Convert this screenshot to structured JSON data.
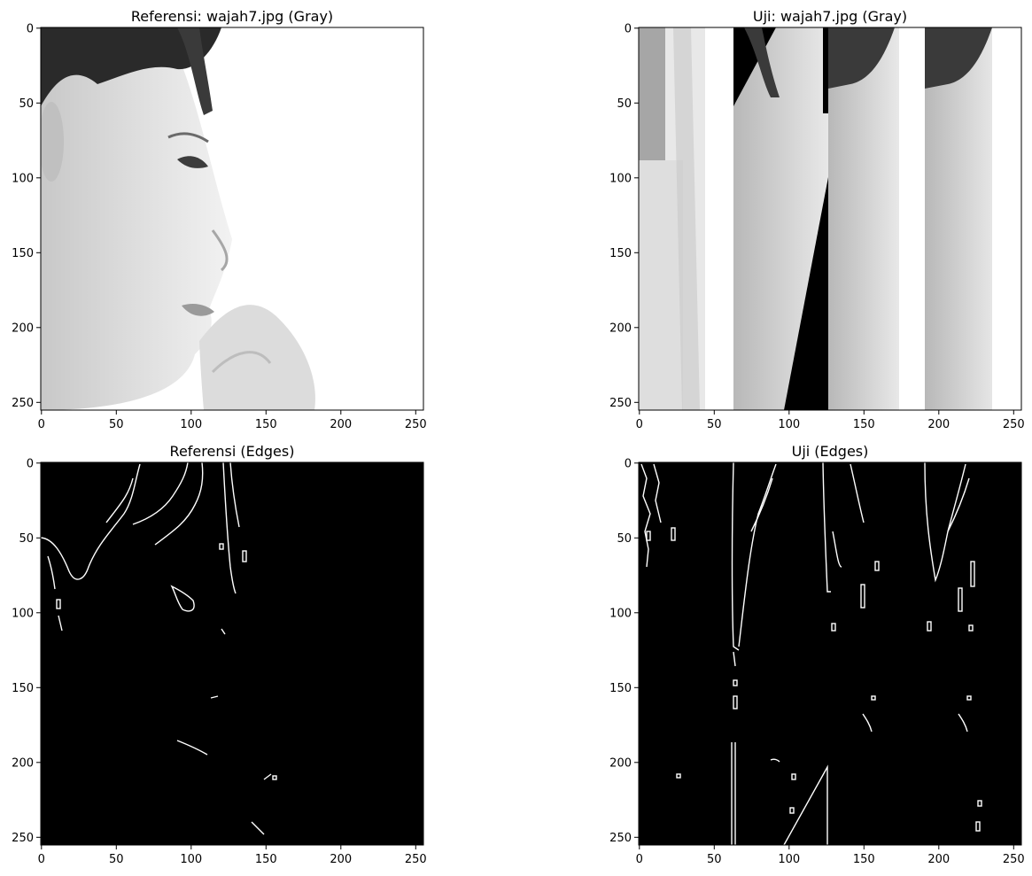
{
  "chart_data": [
    {
      "type": "image",
      "title": "Referensi: wajah7.jpg (Gray)",
      "colormap": "gray",
      "content": "grayscale photo of a face on white background",
      "xlim": [
        0,
        255
      ],
      "ylim": [
        255,
        0
      ],
      "xticks": [
        "0",
        "50",
        "100",
        "150",
        "200",
        "250"
      ],
      "yticks": [
        "0",
        "50",
        "100",
        "150",
        "200",
        "250"
      ]
    },
    {
      "type": "image",
      "title": "Uji: wajah7.jpg (Gray)",
      "colormap": "gray",
      "content": "four vertical strips of the face image, some noisy or rotated",
      "xlim": [
        0,
        255
      ],
      "ylim": [
        255,
        0
      ],
      "xticks": [
        "0",
        "50",
        "100",
        "150",
        "200",
        "250"
      ],
      "yticks": [
        "0",
        "50",
        "100",
        "150",
        "200",
        "250"
      ]
    },
    {
      "type": "image",
      "title": "Referensi (Edges)",
      "colormap": "gray",
      "content": "edge map: white edge lines on black background",
      "xlim": [
        0,
        255
      ],
      "ylim": [
        255,
        0
      ],
      "xticks": [
        "0",
        "50",
        "100",
        "150",
        "200",
        "250"
      ],
      "yticks": [
        "0",
        "50",
        "100",
        "150",
        "200",
        "250"
      ]
    },
    {
      "type": "image",
      "title": "Uji (Edges)",
      "colormap": "gray",
      "content": "edge map: white edge lines on black background",
      "xlim": [
        0,
        255
      ],
      "ylim": [
        255,
        0
      ],
      "xticks": [
        "0",
        "50",
        "100",
        "150",
        "200",
        "250"
      ],
      "yticks": [
        "0",
        "50",
        "100",
        "150",
        "200",
        "250"
      ]
    }
  ],
  "colors": {
    "edge_bg": "#000000",
    "edge_line": "#ffffff",
    "gray_bg": "#ffffff",
    "face_gray": "#d0d0d0",
    "hair": "#2a2a2a"
  }
}
